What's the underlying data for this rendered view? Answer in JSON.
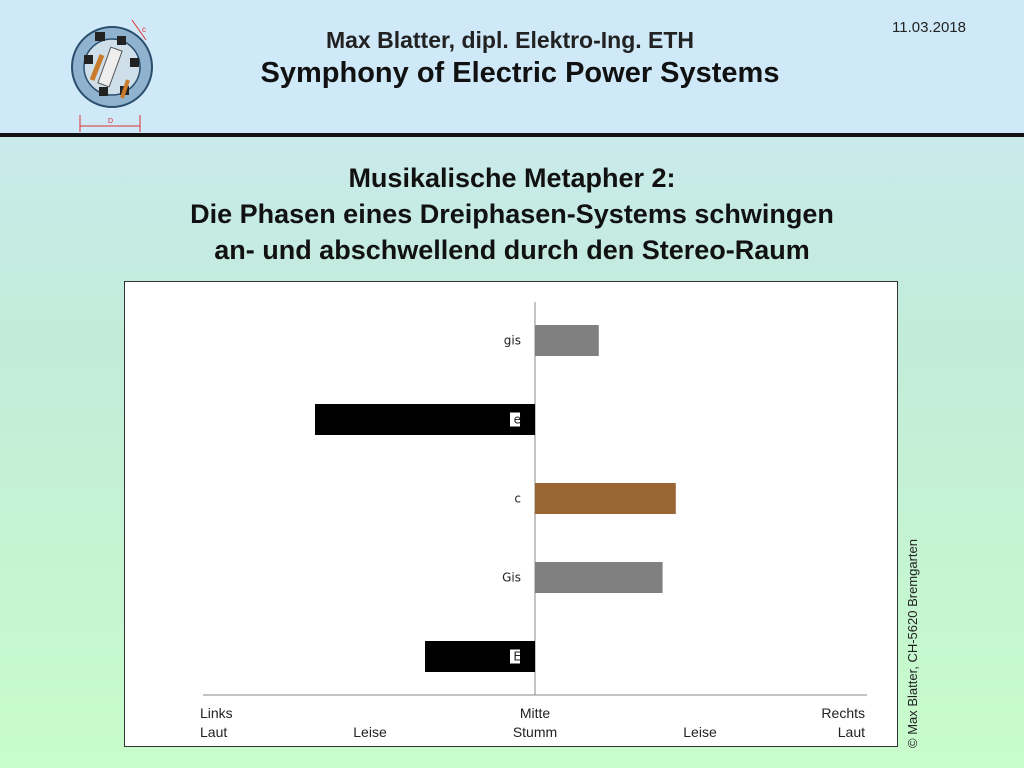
{
  "header": {
    "author": "Max Blatter, dipl. Elektro-Ing. ETH",
    "title": "Symphony of Electric Power Systems",
    "date": "11.03.2018",
    "logo_label_c": "c",
    "logo_label_d": "D",
    "logo_icon": "electric-machine-cross-section-icon"
  },
  "slide": {
    "title_line1": "Musikalische Metapher 2:",
    "title_line2": "Die Phasen eines Dreiphasen-Systems schwingen",
    "title_line3": "an- und abschwellend durch den Stereo-Raum"
  },
  "chart_data": {
    "type": "bar",
    "orientation": "horizontal",
    "categories": [
      "gis",
      "e",
      "c",
      "Gis",
      "E"
    ],
    "values": [
      0.29,
      -1.0,
      0.64,
      0.58,
      -0.5
    ],
    "colors": [
      "#808080",
      "#000000",
      "#996633",
      "#808080",
      "#000000"
    ],
    "xlim": [
      -1.5,
      1.5
    ],
    "grid": false,
    "legend": "none",
    "x_tick_labels_top": [
      {
        "x": -1.5,
        "label": "Links"
      },
      {
        "x": 0,
        "label": "Mitte"
      },
      {
        "x": 1.5,
        "label": "Rechts"
      }
    ],
    "x_tick_labels_bottom": [
      {
        "x": -1.5,
        "label": "Laut"
      },
      {
        "x": -0.75,
        "label": "Leise"
      },
      {
        "x": 0,
        "label": "Stumm"
      },
      {
        "x": 0.75,
        "label": "Leise"
      },
      {
        "x": 1.5,
        "label": "Laut"
      }
    ]
  },
  "footer": {
    "copyright": "© Max Blatter, CH-5620 Bremgarten"
  }
}
